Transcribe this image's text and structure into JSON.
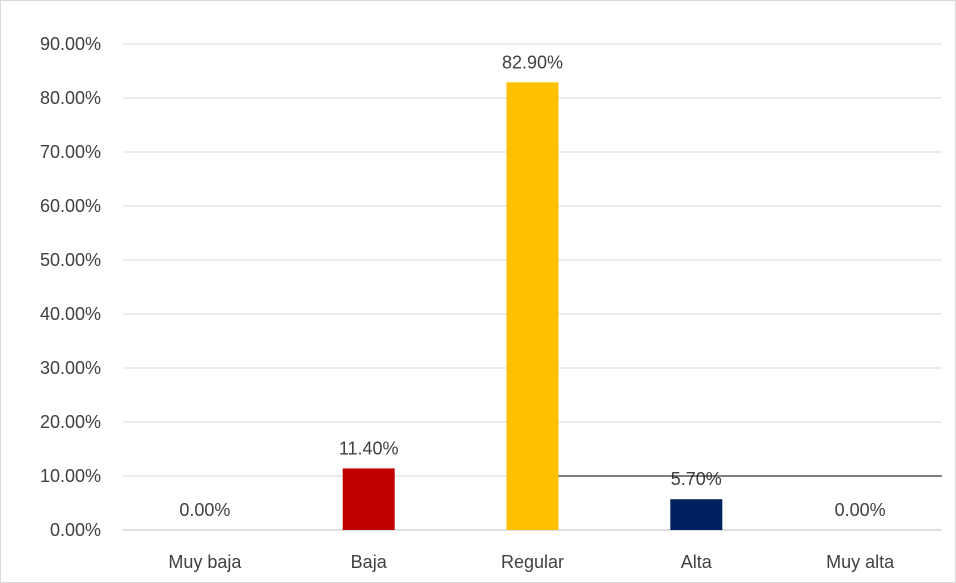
{
  "chart_data": {
    "type": "bar",
    "categories": [
      "Muy baja",
      "Baja",
      "Regular",
      "Alta",
      "Muy alta"
    ],
    "values": [
      0.0,
      11.4,
      82.9,
      5.7,
      0.0
    ],
    "data_labels": [
      "0.00%",
      "11.40%",
      "82.90%",
      "5.70%",
      "0.00%"
    ],
    "colors": [
      "#c00000",
      "#c00000",
      "#ffc000",
      "#002060",
      "#002060"
    ],
    "ylim": [
      0,
      90
    ],
    "yticks": [
      0,
      10,
      20,
      30,
      40,
      50,
      60,
      70,
      80,
      90
    ],
    "ytick_labels": [
      "0.00%",
      "10.00%",
      "20.00%",
      "30.00%",
      "40.00%",
      "50.00%",
      "60.00%",
      "70.00%",
      "80.00%",
      "90.00%"
    ],
    "grid": true,
    "title": "",
    "xlabel": "",
    "ylabel": "",
    "annotation_line_y": 10
  }
}
